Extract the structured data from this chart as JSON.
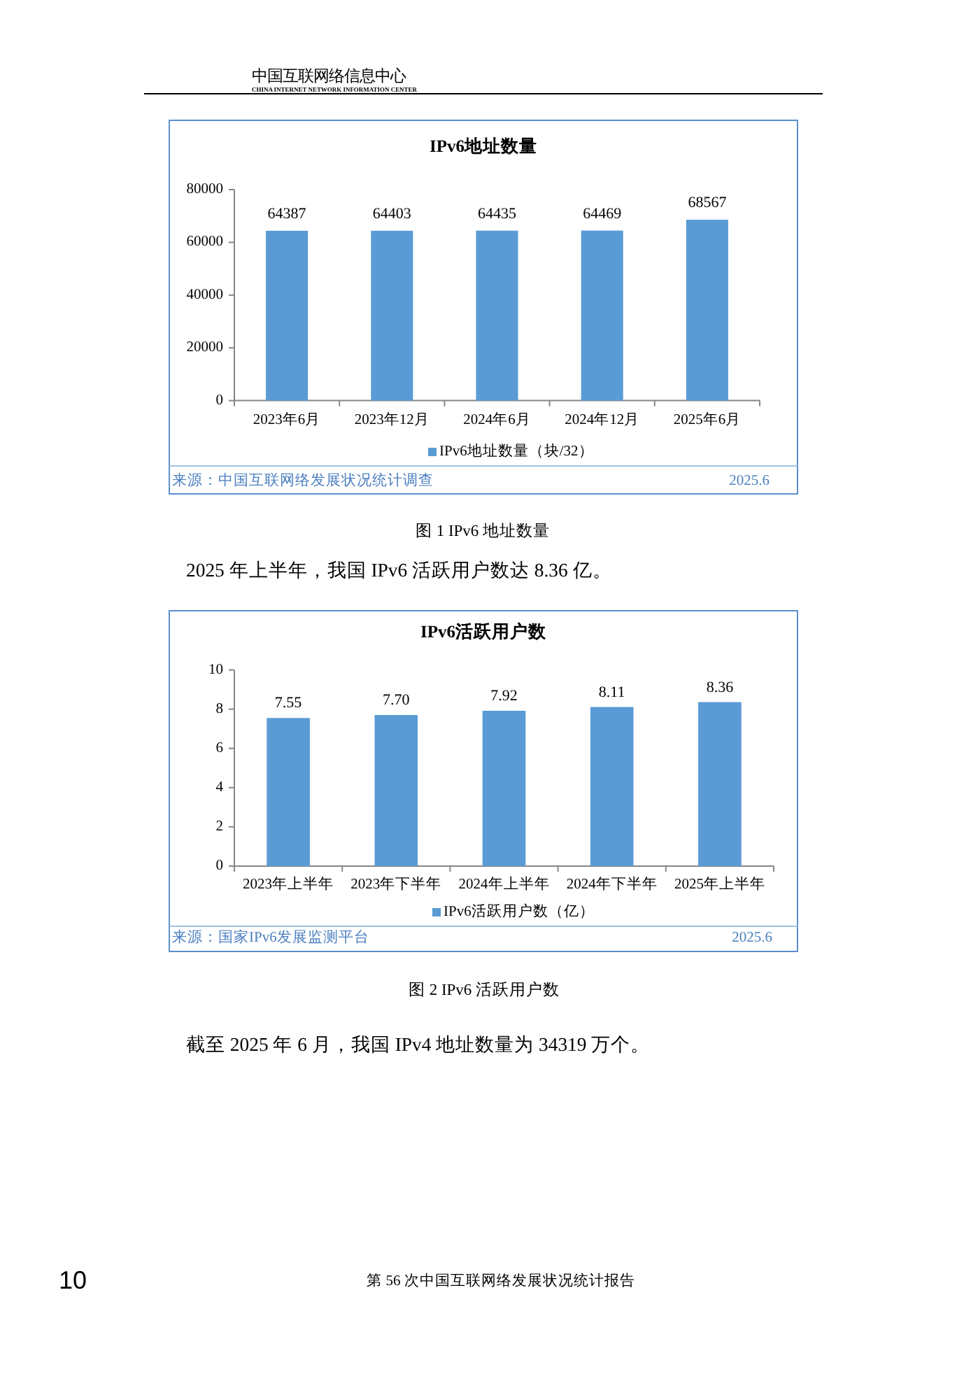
{
  "chart_data": [
    {
      "type": "bar",
      "title": "IPv6地址数量",
      "categories": [
        "2023年6月",
        "2023年12月",
        "2024年6月",
        "2024年12月",
        "2025年6月"
      ],
      "series": [
        {
          "name": "IPv6地址数量（块/32）",
          "color": "#5b9bd5",
          "values": [
            64387,
            64403,
            64435,
            64469,
            68567
          ]
        }
      ],
      "ylim": [
        0,
        80000
      ],
      "yticks": [
        0,
        20000,
        40000,
        60000,
        80000
      ],
      "data_labels": true,
      "legend": "bottom",
      "annotations": [
        "中国互联网络信息中心",
        "CHINA INTERNET NETWORK INFORMATION CENTER",
        "来源：中国互联网络发展状况统计调查",
        "2025.6",
        "图 1 IPv6 地址数量"
      ]
    },
    {
      "type": "bar",
      "title": "IPv6活跃用户数",
      "categories": [
        "2023年上半年",
        "2023年下半年",
        "2024年上半年",
        "2024年下半年",
        "2025年上半年"
      ],
      "series": [
        {
          "name": "IPv6活跃用户数（亿）",
          "color": "#5b9bd5",
          "values": [
            7.55,
            7.7,
            7.92,
            8.11,
            8.36
          ],
          "value_labels": [
            "7.55",
            "7.70",
            "7.92",
            "8.11",
            "8.36"
          ]
        }
      ],
      "ylim": [
        0,
        10
      ],
      "yticks": [
        0,
        2,
        4,
        6,
        8,
        10
      ],
      "legend": "bottom",
      "annotations": [
        "2025 年上半年，我国 IPv6 活跃用户数达 8.36 亿。",
        "来源：国家IPv6发展监测平台",
        "2025.6",
        "图 2 IPv6 活跃用户数",
        "截至 2025 年 6 月，我国 IPv4 地址数量为 34319 万个。",
        "10",
        "第 56 次中国互联网络发展状况统计报告"
      ]
    }
  ]
}
